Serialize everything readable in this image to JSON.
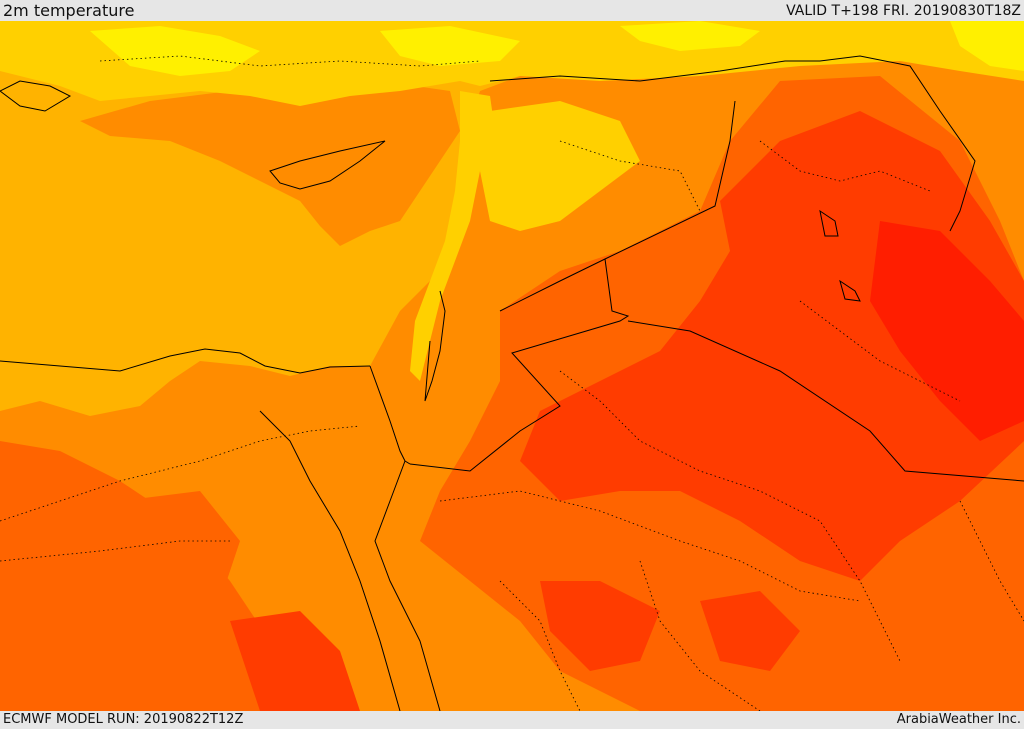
{
  "header": {
    "title": "2m temperature",
    "valid": "VALID T+198 FRI. 20190830T18Z"
  },
  "footer": {
    "model_run": "ECMWF MODEL RUN: 20190822T12Z",
    "credit": "ArabiaWeather Inc."
  },
  "palette": {
    "sea_band": "#ffb300",
    "warm_band": "#ff8c00",
    "hot_band": "#ff6400",
    "very_hot_band": "#ff3c00",
    "extreme_band": "#ff1e00",
    "mild_band": "#ffd000",
    "cool_band": "#fff000",
    "border_line": "#000000"
  }
}
